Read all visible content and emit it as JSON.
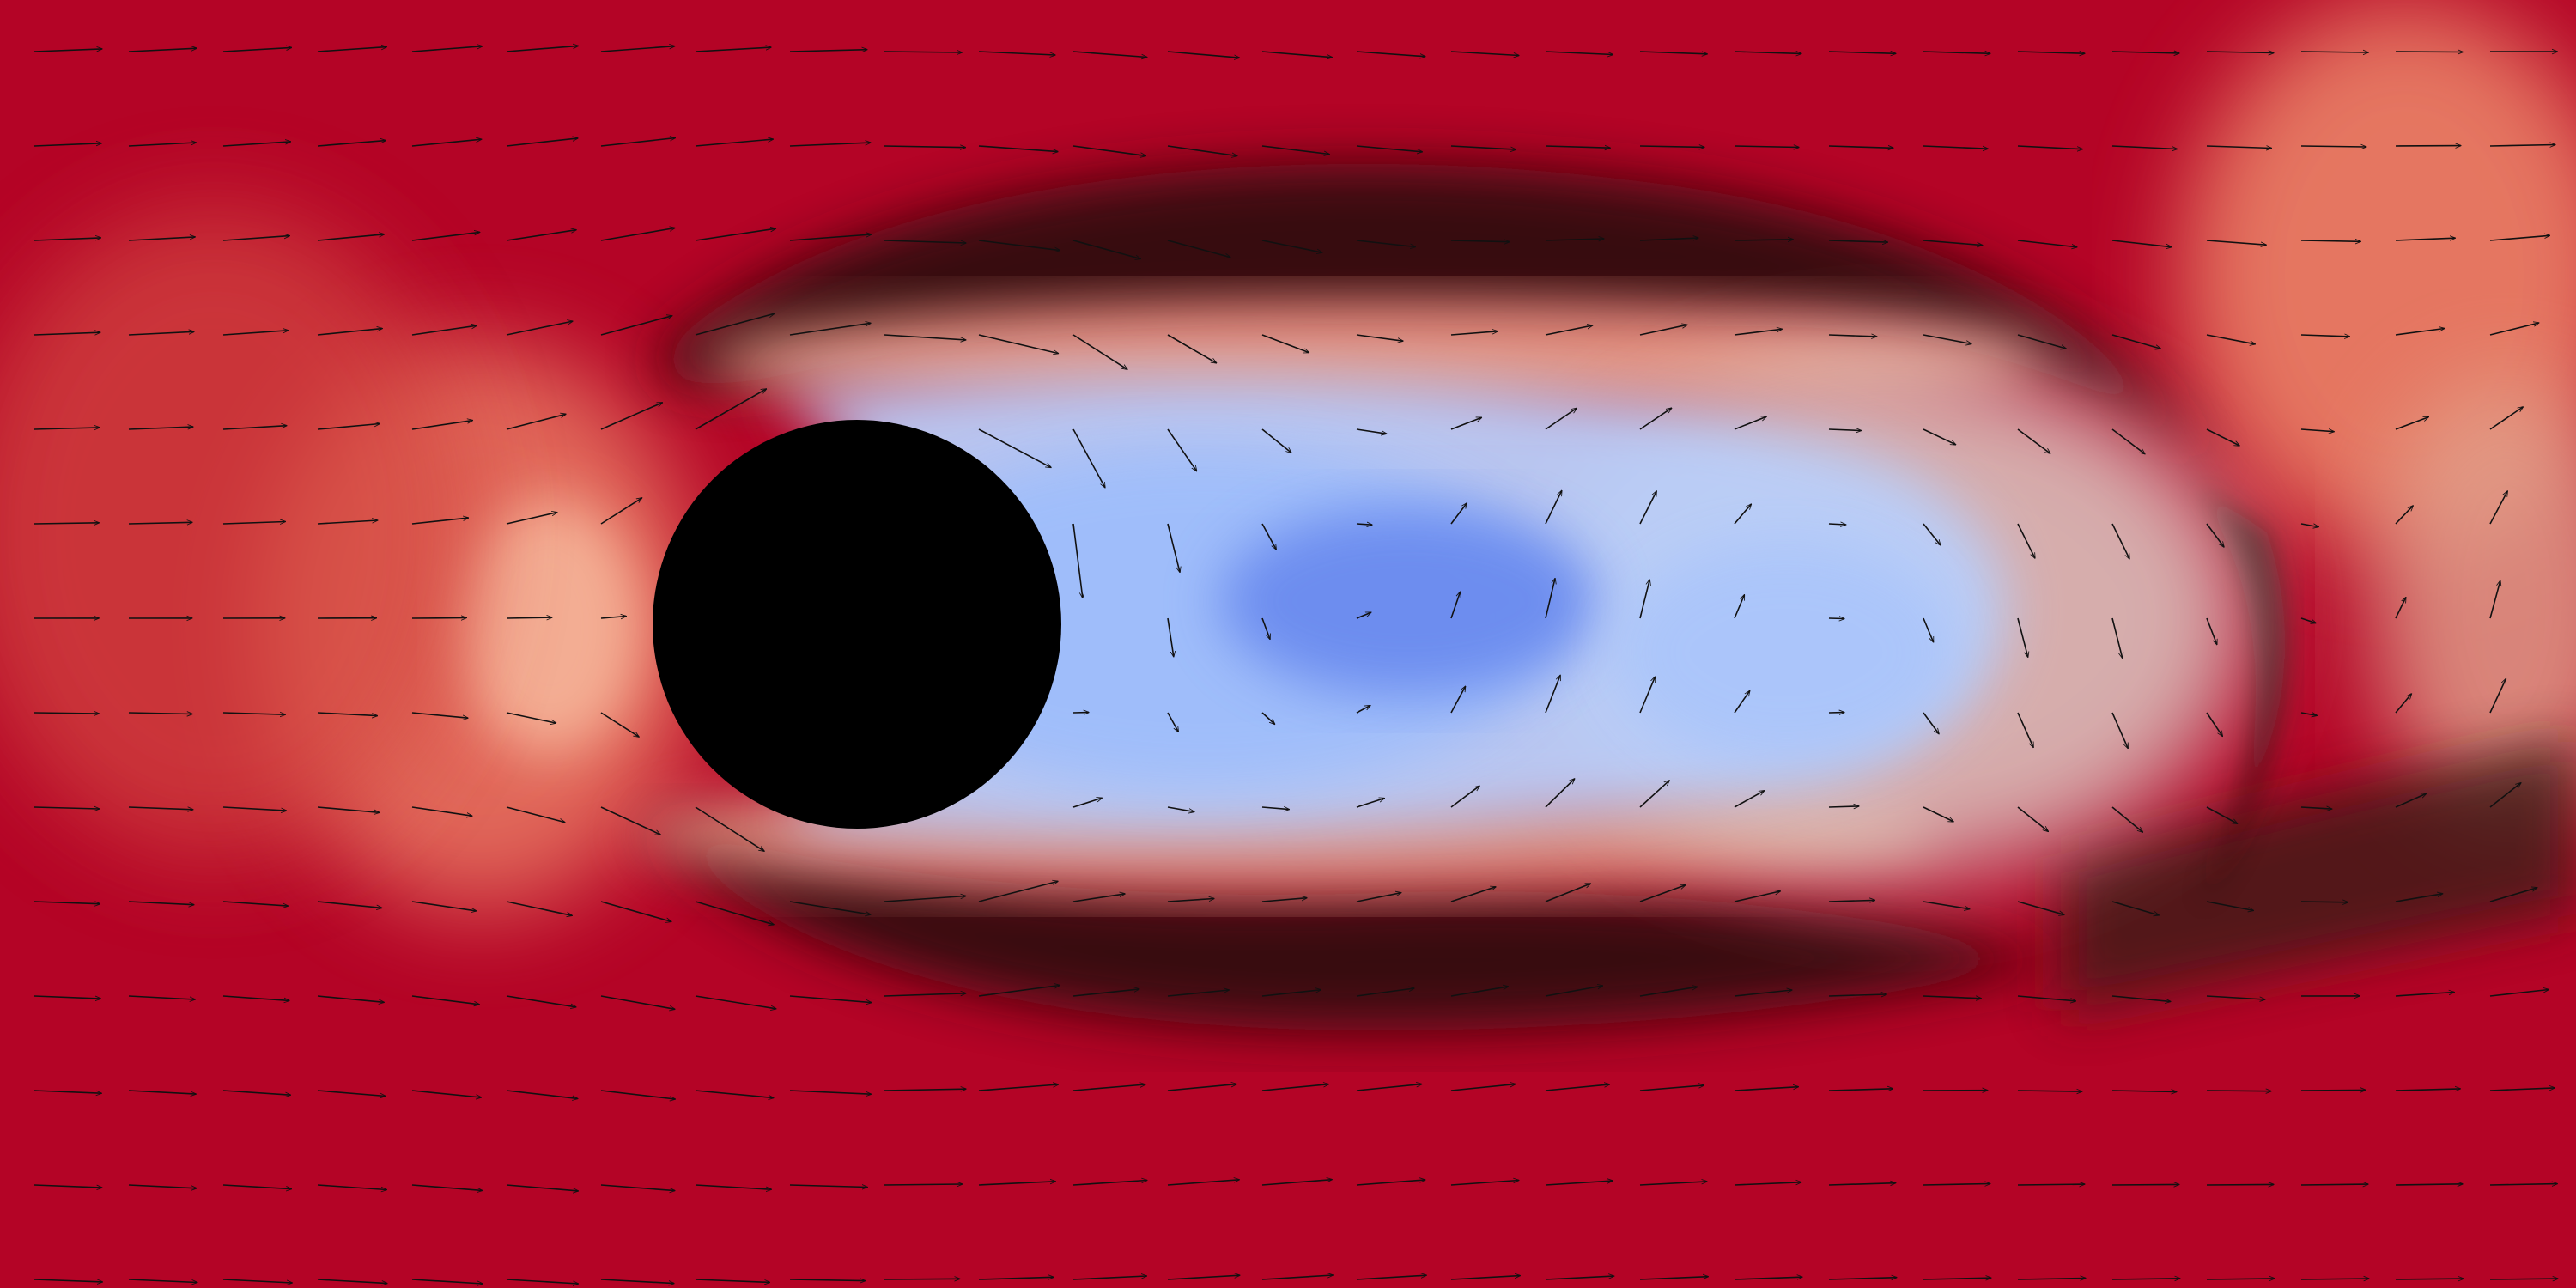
{
  "visualization": {
    "kind": "flow-field",
    "description_tags": [
      "velocity-magnitude",
      "quiver",
      "cylinder-wake"
    ],
    "colormap": "coolwarm",
    "colors": {
      "high": "#b40426",
      "mid_high": "#f08a6c",
      "neutral": "#dddcdc",
      "mid_low": "#9dbdfc",
      "low": "#3b4cc0",
      "dark_shear": "#2a0a0a",
      "obstacle": "#000000",
      "arrow": "#111111"
    },
    "obstacle": {
      "shape": "circle"
    },
    "arrows_visible": true
  }
}
